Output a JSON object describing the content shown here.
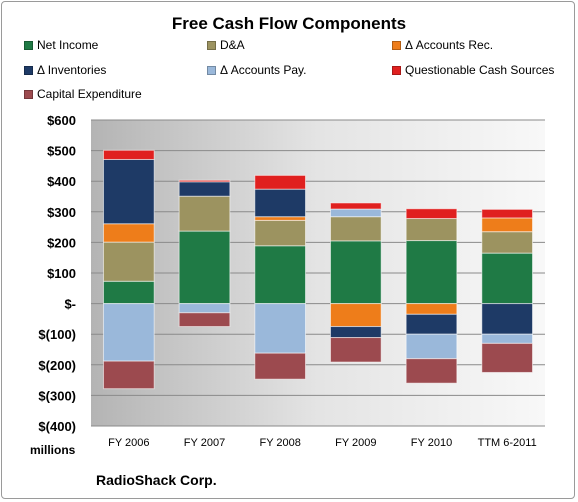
{
  "chart_data": {
    "type": "bar",
    "stacked": true,
    "title": "Free Cash Flow Components",
    "categories": [
      "FY 2006",
      "FY 2007",
      "FY 2008",
      "FY 2009",
      "FY 2010",
      "TTM 6-2011"
    ],
    "y_tick_labels": [
      "$600",
      "$500",
      "$400",
      "$300",
      "$200",
      "$100",
      "$-",
      "$(100)",
      "$(200)",
      "$(300)",
      "$(400)"
    ],
    "y_tick_values": [
      600,
      500,
      400,
      300,
      200,
      100,
      0,
      -100,
      -200,
      -300,
      -400
    ],
    "ylim": [
      -400,
      600
    ],
    "units_label": "millions",
    "legend_placement": "top",
    "grid": true,
    "series": [
      {
        "name": "Net Income",
        "color": "#1f7a45",
        "values": [
          73,
          237,
          189,
          205,
          206,
          165
        ]
      },
      {
        "name": "D&A",
        "color": "#9c9360",
        "values": [
          128,
          114,
          83,
          79,
          72,
          70
        ]
      },
      {
        "name": "Δ Accounts Rec.",
        "color": "#ee7d1a",
        "values": [
          60,
          0,
          12,
          -75,
          -35,
          45
        ]
      },
      {
        "name": "Δ Inventories",
        "color": "#1e3a66",
        "values": [
          210,
          47,
          90,
          -36,
          -65,
          -100
        ]
      },
      {
        "name": "Δ Accounts Pay.",
        "color": "#9ab8da",
        "values": [
          -188,
          -30,
          -162,
          25,
          -80,
          -30
        ]
      },
      {
        "name": "Questionable Cash Sources",
        "color": "#e0201f",
        "values": [
          30,
          5,
          45,
          20,
          32,
          28
        ]
      },
      {
        "name": "Capital Expenditure",
        "color": "#9c4a4f",
        "values": [
          -90,
          -45,
          -85,
          -80,
          -80,
          -95
        ]
      }
    ]
  },
  "footer": {
    "company": "RadioShack Corp."
  }
}
